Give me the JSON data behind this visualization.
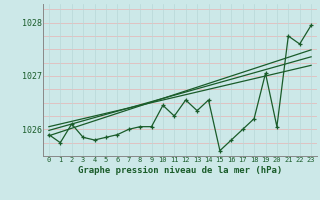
{
  "hours": [
    0,
    1,
    2,
    3,
    4,
    5,
    6,
    7,
    8,
    9,
    10,
    11,
    12,
    13,
    14,
    15,
    16,
    17,
    18,
    19,
    20,
    21,
    22,
    23
  ],
  "pressure_data": [
    1025.9,
    1025.75,
    1026.1,
    1025.85,
    1025.8,
    1025.85,
    1025.9,
    1026.0,
    1026.05,
    1026.05,
    1026.45,
    1026.25,
    1026.55,
    1026.35,
    1026.55,
    1025.6,
    1025.8,
    1026.0,
    1026.2,
    1027.05,
    1026.05,
    1027.75,
    1027.6,
    1027.95
  ],
  "trend_line1": [
    1025.88,
    1025.95,
    1026.02,
    1026.09,
    1026.16,
    1026.23,
    1026.3,
    1026.37,
    1026.44,
    1026.51,
    1026.58,
    1026.65,
    1026.72,
    1026.79,
    1026.86,
    1026.93,
    1027.0,
    1027.07,
    1027.14,
    1027.21,
    1027.28,
    1027.35,
    1027.42,
    1027.49
  ],
  "trend_line2": [
    1025.98,
    1026.04,
    1026.1,
    1026.16,
    1026.22,
    1026.28,
    1026.34,
    1026.4,
    1026.46,
    1026.52,
    1026.58,
    1026.64,
    1026.7,
    1026.76,
    1026.82,
    1026.88,
    1026.94,
    1027.0,
    1027.06,
    1027.12,
    1027.18,
    1027.24,
    1027.3,
    1027.36
  ],
  "trend_line3": [
    1026.05,
    1026.1,
    1026.15,
    1026.2,
    1026.25,
    1026.3,
    1026.35,
    1026.4,
    1026.45,
    1026.5,
    1026.55,
    1026.6,
    1026.65,
    1026.7,
    1026.75,
    1026.8,
    1026.85,
    1026.9,
    1026.95,
    1027.0,
    1027.05,
    1027.1,
    1027.15,
    1027.2
  ],
  "ylim": [
    1025.5,
    1028.35
  ],
  "ytick_positions": [
    1026,
    1027,
    1028
  ],
  "ytick_labels": [
    "1026",
    "1027",
    "1028"
  ],
  "xtick_labels": [
    "0",
    "1",
    "2",
    "3",
    "4",
    "5",
    "6",
    "7",
    "8",
    "9",
    "10",
    "11",
    "12",
    "13",
    "14",
    "15",
    "16",
    "17",
    "18",
    "19",
    "20",
    "21",
    "22",
    "23"
  ],
  "bg_color": "#cce8e8",
  "grid_color_h": "#e8b4b4",
  "grid_color_v": "#b8d8d8",
  "line_color": "#1a5c2a",
  "border_color": "#888888",
  "xlabel": "Graphe pression niveau de la mer (hPa)"
}
